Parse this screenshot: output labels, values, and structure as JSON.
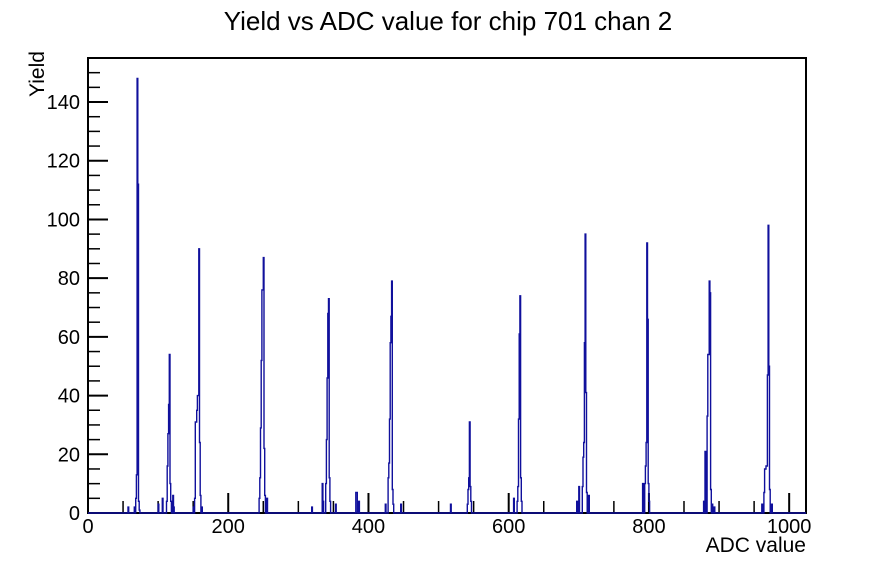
{
  "chart_data": {
    "type": "bar",
    "subtype": "histogram-step-outline",
    "title": "Yield vs ADC value for chip 701 chan 2",
    "xlabel": "ADC value",
    "ylabel": "Yield",
    "xlim": [
      0,
      1024
    ],
    "ylim": [
      0,
      155
    ],
    "grid": false,
    "legend": "none",
    "x_major_ticks": [
      0,
      200,
      400,
      600,
      800,
      1000
    ],
    "x_minor_step": 50,
    "y_major_ticks": [
      0,
      20,
      40,
      60,
      80,
      100,
      120,
      140
    ],
    "y_minor_step": 5,
    "line_color": "#10109c",
    "axis_color": "#000000",
    "background_color": "#ffffff",
    "peak_summary": [
      {
        "adc": 70,
        "yield": 148
      },
      {
        "adc": 116,
        "yield": 54
      },
      {
        "adc": 158,
        "yield": 90
      },
      {
        "adc": 250,
        "yield": 87
      },
      {
        "adc": 343,
        "yield": 73
      },
      {
        "adc": 433,
        "yield": 79
      },
      {
        "adc": 544,
        "yield": 31
      },
      {
        "adc": 616,
        "yield": 74
      },
      {
        "adc": 709,
        "yield": 95
      },
      {
        "adc": 797,
        "yield": 92
      },
      {
        "adc": 886,
        "yield": 79
      },
      {
        "adc": 970,
        "yield": 98
      }
    ],
    "peaks": [
      {
        "bins": [
          [
            57,
            2
          ],
          [
            66,
            2
          ],
          [
            68,
            5
          ],
          [
            69,
            13
          ],
          [
            70,
            148
          ],
          [
            71,
            112
          ],
          [
            72,
            4
          ],
          [
            73,
            1
          ]
        ]
      },
      {
        "bins": [
          [
            100,
            3
          ],
          [
            106,
            5
          ],
          [
            112,
            4
          ],
          [
            113,
            16
          ],
          [
            114,
            27
          ],
          [
            115,
            37
          ],
          [
            116,
            54
          ],
          [
            117,
            10
          ],
          [
            118,
            4
          ],
          [
            121,
            6
          ],
          [
            122,
            2
          ]
        ]
      },
      {
        "bins": [
          [
            150,
            2
          ],
          [
            152,
            5
          ],
          [
            153,
            31
          ],
          [
            154,
            31
          ],
          [
            155,
            35
          ],
          [
            156,
            40
          ],
          [
            157,
            40
          ],
          [
            158,
            90
          ],
          [
            159,
            24
          ],
          [
            160,
            6
          ],
          [
            162,
            2
          ]
        ]
      },
      {
        "bins": [
          [
            244,
            5
          ],
          [
            245,
            12
          ],
          [
            246,
            29
          ],
          [
            247,
            52
          ],
          [
            248,
            76
          ],
          [
            249,
            76
          ],
          [
            250,
            87
          ],
          [
            251,
            22
          ],
          [
            252,
            6
          ],
          [
            255,
            5
          ]
        ]
      },
      {
        "bins": [
          [
            319,
            2
          ],
          [
            334,
            10
          ],
          [
            335,
            4
          ],
          [
            339,
            10
          ],
          [
            340,
            25
          ],
          [
            341,
            46
          ],
          [
            342,
            68
          ],
          [
            343,
            73
          ],
          [
            344,
            12
          ],
          [
            345,
            4
          ],
          [
            353,
            3
          ]
        ]
      },
      {
        "bins": [
          [
            382,
            7
          ],
          [
            383,
            7
          ],
          [
            386,
            4
          ]
        ]
      },
      {
        "bins": [
          [
            424,
            3
          ],
          [
            428,
            12
          ],
          [
            429,
            17
          ],
          [
            430,
            32
          ],
          [
            431,
            58
          ],
          [
            432,
            67
          ],
          [
            433,
            79
          ],
          [
            434,
            8
          ],
          [
            435,
            3
          ],
          [
            446,
            3
          ]
        ]
      },
      {
        "bins": [
          [
            517,
            3
          ],
          [
            541,
            3
          ],
          [
            542,
            8
          ],
          [
            543,
            12
          ],
          [
            544,
            31
          ],
          [
            545,
            9
          ],
          [
            546,
            4
          ]
        ]
      },
      {
        "bins": [
          [
            607,
            5
          ],
          [
            612,
            4
          ],
          [
            613,
            9
          ],
          [
            614,
            32
          ],
          [
            615,
            61
          ],
          [
            616,
            74
          ],
          [
            617,
            12
          ],
          [
            618,
            4
          ]
        ]
      },
      {
        "bins": [
          [
            697,
            4
          ],
          [
            700,
            9
          ],
          [
            705,
            9
          ],
          [
            706,
            19
          ],
          [
            707,
            24
          ],
          [
            708,
            58
          ],
          [
            709,
            95
          ],
          [
            710,
            41
          ],
          [
            711,
            7
          ],
          [
            714,
            6
          ]
        ]
      },
      {
        "bins": [
          [
            791,
            10
          ],
          [
            792,
            7
          ],
          [
            794,
            10
          ],
          [
            795,
            16
          ],
          [
            796,
            24
          ],
          [
            797,
            92
          ],
          [
            798,
            66
          ],
          [
            799,
            10
          ],
          [
            800,
            4
          ]
        ]
      },
      {
        "bins": [
          [
            878,
            4
          ],
          [
            880,
            21
          ],
          [
            881,
            11
          ],
          [
            883,
            33
          ],
          [
            884,
            54
          ],
          [
            885,
            54
          ],
          [
            886,
            79
          ],
          [
            887,
            75
          ],
          [
            888,
            8
          ],
          [
            890,
            3
          ],
          [
            893,
            2
          ]
        ]
      },
      {
        "bins": [
          [
            961,
            3
          ],
          [
            964,
            7
          ],
          [
            965,
            15
          ],
          [
            966,
            15
          ],
          [
            967,
            16
          ],
          [
            968,
            16
          ],
          [
            969,
            47
          ],
          [
            970,
            98
          ],
          [
            971,
            50
          ],
          [
            972,
            8
          ],
          [
            975,
            3
          ]
        ]
      }
    ]
  }
}
